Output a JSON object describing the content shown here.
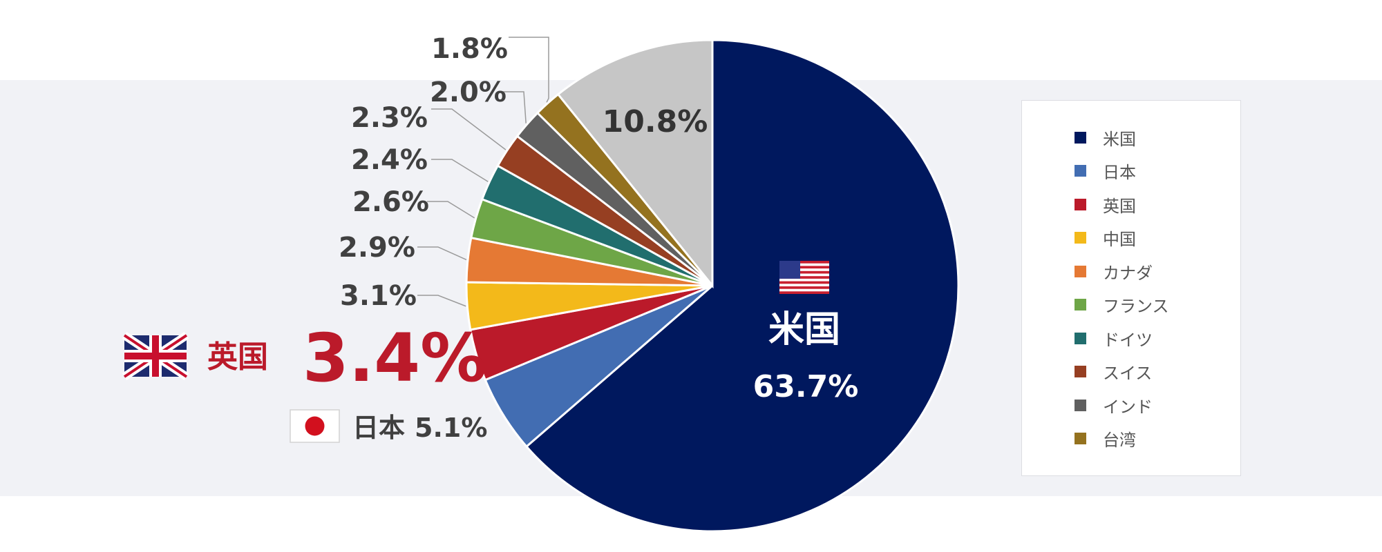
{
  "chart_data": {
    "type": "pie",
    "slices": [
      {
        "name": "米国",
        "value": 63.7,
        "color": "#00185e",
        "label": "63.7%"
      },
      {
        "name": "日本",
        "value": 5.1,
        "color": "#426db2",
        "label": "5.1%"
      },
      {
        "name": "英国",
        "value": 3.4,
        "color": "#bb1a2a",
        "label": "3.4%"
      },
      {
        "name": "中国",
        "value": 3.1,
        "color": "#f3b91a",
        "label": "3.1%"
      },
      {
        "name": "カナダ",
        "value": 2.9,
        "color": "#e57934",
        "label": "2.9%"
      },
      {
        "name": "フランス",
        "value": 2.6,
        "color": "#6ea647",
        "label": "2.6%"
      },
      {
        "name": "ドイツ",
        "value": 2.4,
        "color": "#216e6e",
        "label": "2.4%"
      },
      {
        "name": "スイス",
        "value": 2.3,
        "color": "#963f22",
        "label": "2.3%"
      },
      {
        "name": "インド",
        "value": 2.0,
        "color": "#606060",
        "label": "2.0%"
      },
      {
        "name": "台湾",
        "value": 1.8,
        "color": "#94721f",
        "label": "1.8%"
      },
      {
        "name": "",
        "value": 10.8,
        "color": "#c6c6c6",
        "label": "10.8%"
      }
    ],
    "callouts": {
      "us": {
        "name": "米国",
        "pct": "63.7%"
      },
      "uk": {
        "name": "英国",
        "pct": "3.4%"
      },
      "jp": {
        "name": "日本",
        "pct": "5.1%"
      }
    },
    "legend_position": "right"
  }
}
